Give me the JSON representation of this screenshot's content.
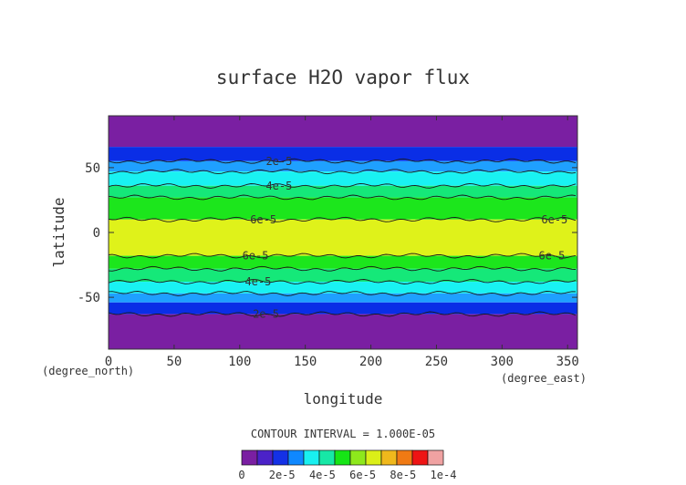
{
  "chart_data": {
    "type": "heatmap",
    "title": "surface H2O vapor flux",
    "xlabel": "longitude",
    "ylabel": "latitude",
    "x_unit_label": "(degree_east)",
    "y_unit_label": "(degree_north)",
    "xlim": [
      0,
      357.5
    ],
    "ylim": [
      -90,
      90
    ],
    "x_ticks": [
      0,
      50,
      100,
      150,
      200,
      250,
      300,
      350
    ],
    "y_ticks": [
      -50,
      0,
      50
    ],
    "contour_interval_text": "CONTOUR INTERVAL = 1.000E-05",
    "bands": [
      {
        "lat_min": 66,
        "lat_max": 90,
        "level": 0
      },
      {
        "lat_min": 55,
        "lat_max": 66,
        "level": 1
      },
      {
        "lat_min": 47,
        "lat_max": 55,
        "level": 2
      },
      {
        "lat_min": 36,
        "lat_max": 47,
        "level": 3
      },
      {
        "lat_min": 27,
        "lat_max": 36,
        "level": 4
      },
      {
        "lat_min": 10,
        "lat_max": 27,
        "level": 5
      },
      {
        "lat_min": -18,
        "lat_max": 10,
        "level": 6
      },
      {
        "lat_min": -28,
        "lat_max": -18,
        "level": 5
      },
      {
        "lat_min": -38,
        "lat_max": -28,
        "level": 4
      },
      {
        "lat_min": -47,
        "lat_max": -38,
        "level": 3
      },
      {
        "lat_min": -54,
        "lat_max": -47,
        "level": 2
      },
      {
        "lat_min": -63,
        "lat_max": -54,
        "level": 1
      },
      {
        "lat_min": -90,
        "lat_max": -63,
        "level": 0
      }
    ],
    "contours": [
      {
        "lat": 55,
        "label": "2e-5",
        "label_lon": 130
      },
      {
        "lat": 47,
        "label": "",
        "label_lon": null
      },
      {
        "lat": 36,
        "label": "4e-5",
        "label_lon": 130
      },
      {
        "lat": 27,
        "label": "",
        "label_lon": null
      },
      {
        "lat": 10,
        "label": "6e-5",
        "label_lon": 118
      },
      {
        "lat": 10,
        "label": "6e-5",
        "label_lon": 340
      },
      {
        "lat": -18,
        "label": "6e-5",
        "label_lon": 112
      },
      {
        "lat": -18,
        "label": "6e-5",
        "label_lon": 338
      },
      {
        "lat": -28,
        "label": "",
        "label_lon": null
      },
      {
        "lat": -38,
        "label": "4e-5",
        "label_lon": 114
      },
      {
        "lat": -47,
        "label": "",
        "label_lon": null
      },
      {
        "lat": -63,
        "label": "2e-5",
        "label_lon": 120
      }
    ],
    "colorbar": {
      "colors": [
        "#7a1fa2",
        "#4b22c8",
        "#1431e6",
        "#0f88ff",
        "#19f0f0",
        "#17e8a6",
        "#16e516",
        "#8ee81c",
        "#dbef18",
        "#f0b81c",
        "#f07a14",
        "#ee1414",
        "#f0a2a2"
      ],
      "tick_labels": [
        "0",
        "2e-5",
        "4e-5",
        "6e-5",
        "8e-5",
        "1e-4"
      ]
    },
    "level_colors": [
      "#7a1fa2",
      "#0a2ee6",
      "#1fa0ff",
      "#19f2f2",
      "#15e879",
      "#1ce61c",
      "#dff21a"
    ]
  }
}
